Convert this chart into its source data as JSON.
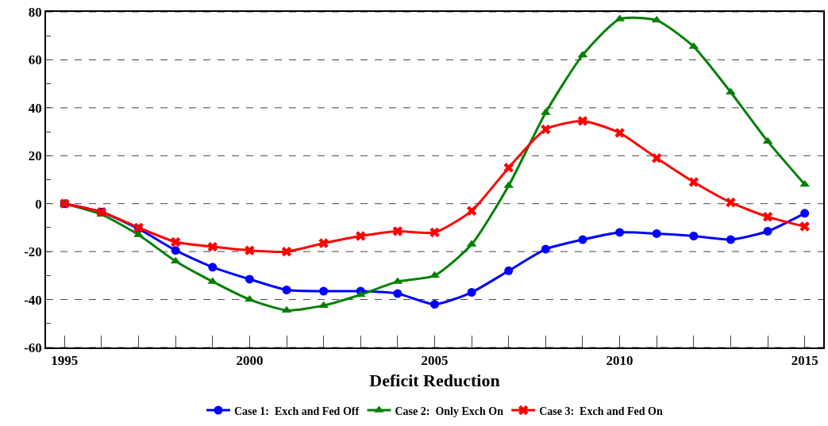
{
  "chart_data": {
    "type": "line",
    "xlabel": "Deficit Reduction",
    "x": [
      1995,
      1996,
      1997,
      1998,
      1999,
      2000,
      2001,
      2002,
      2003,
      2004,
      2005,
      2006,
      2007,
      2008,
      2009,
      2010,
      2011,
      2012,
      2013,
      2014,
      2015
    ],
    "series": [
      {
        "name": "Case 1:  Exch and Fed Off",
        "color": "#0000ff",
        "marker": "circle",
        "values": [
          0,
          -3.5,
          -10.5,
          -19.5,
          -26.5,
          -31.5,
          -36,
          -36.5,
          -36.5,
          -37.5,
          -42,
          -37,
          -28,
          -19,
          -15,
          -12,
          -12.5,
          -13.5,
          -15,
          -11.5,
          -4
        ]
      },
      {
        "name": "Case 2:  Only Exch On",
        "color": "#008000",
        "marker": "triangle",
        "values": [
          0,
          -4.5,
          -13,
          -24,
          -32.5,
          -40,
          -44.5,
          -42.5,
          -38,
          -32.5,
          -30,
          -17,
          7.5,
          38,
          62,
          77,
          76.5,
          65.5,
          46.5,
          26,
          8
        ]
      },
      {
        "name": "Case 3:  Exch and Fed On",
        "color": "#ff0000",
        "marker": "cross",
        "values": [
          0,
          -3.5,
          -10,
          -16,
          -18,
          -19.5,
          -20,
          -16.5,
          -13.5,
          -11.5,
          -12,
          -3,
          15,
          31,
          34.5,
          29.5,
          19,
          9,
          0.5,
          -5.5,
          -9.5
        ]
      }
    ],
    "xlim": [
      1994.5,
      2015.5
    ],
    "xticks": [
      1995,
      {
        "value": 1996,
        "label": null
      },
      {
        "value": 1997,
        "label": null
      },
      {
        "value": 1998,
        "label": null
      },
      {
        "value": 1999,
        "label": null
      },
      2000,
      {
        "value": 2001,
        "label": null
      },
      {
        "value": 2002,
        "label": null
      },
      {
        "value": 2003,
        "label": null
      },
      {
        "value": 2004,
        "label": null
      },
      2005,
      {
        "value": 2006,
        "label": null
      },
      {
        "value": 2007,
        "label": null
      },
      {
        "value": 2008,
        "label": null
      },
      {
        "value": 2009,
        "label": null
      },
      2010,
      {
        "value": 2011,
        "label": null
      },
      {
        "value": 2012,
        "label": null
      },
      {
        "value": 2013,
        "label": null
      },
      {
        "value": 2014,
        "label": null
      },
      2015
    ],
    "ylim": [
      -60,
      80
    ],
    "yticks": [
      -60,
      {
        "value": -50,
        "label": null
      },
      -40,
      {
        "value": -30,
        "label": null
      },
      -20,
      {
        "value": -10,
        "label": null
      },
      0,
      {
        "value": 10,
        "label": null
      },
      20,
      {
        "value": 30,
        "label": null
      },
      40,
      {
        "value": 50,
        "label": null
      },
      60,
      {
        "value": 70,
        "label": null
      },
      80
    ],
    "grid": "y",
    "legend": "bottom",
    "line_style": "solid"
  }
}
